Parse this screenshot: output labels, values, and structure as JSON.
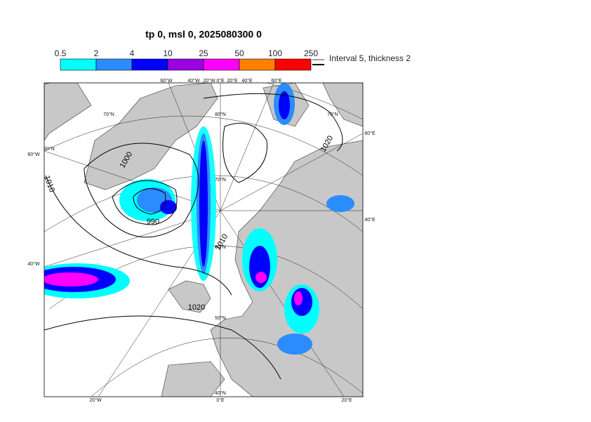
{
  "title": "tp 0, msl 0, 2025080300 0",
  "legend": {
    "labels": [
      0.5,
      2,
      4,
      10,
      25,
      50,
      100,
      250
    ],
    "colors": [
      "#00ffff",
      "#2b8cff",
      "#0000ff",
      "#9a00e0",
      "#ff00ff",
      "#ff8000",
      "#ff0000"
    ],
    "note": "Interval 5, thickness 2"
  },
  "map": {
    "edge_labels": [
      "60°W",
      "40°W",
      "20°W",
      "0°E",
      "20°E",
      "40°E",
      "60°E",
      "60°W",
      "40°W",
      "20°W",
      "0°E",
      "20°E",
      "60°E",
      "40°E"
    ],
    "lat_labels": [
      "70°N",
      "60°N",
      "80°N",
      "70°N",
      "60°N",
      "50°N",
      "40°N",
      "70°N"
    ],
    "isobar_labels": [
      "1000",
      "1010",
      "990",
      "1010",
      "1020",
      "1020"
    ]
  }
}
